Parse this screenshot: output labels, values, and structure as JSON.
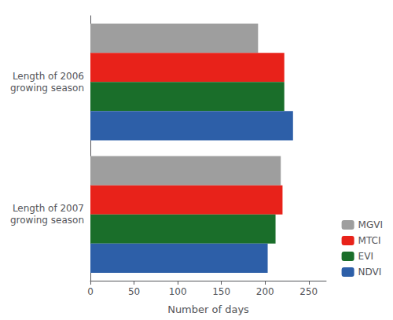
{
  "chart_data": {
    "type": "bar",
    "orientation": "horizontal",
    "categories": [
      "Length of 2006\ngrowing season",
      "Length of 2007\ngrowing season"
    ],
    "series": [
      {
        "name": "MGVI",
        "color": "#9e9e9e",
        "values": [
          192,
          218
        ]
      },
      {
        "name": "MTCI",
        "color": "#e8221a",
        "values": [
          222,
          220
        ]
      },
      {
        "name": "EVI",
        "color": "#1a6e2a",
        "values": [
          222,
          212
        ]
      },
      {
        "name": "NDVI",
        "color": "#2d5fa8",
        "values": [
          232,
          203
        ]
      }
    ],
    "xlabel": "Number of days",
    "xlim": [
      0,
      270
    ],
    "xticks": [
      0,
      50,
      100,
      150,
      200,
      250
    ],
    "legend": "lower right",
    "grid": false
  }
}
